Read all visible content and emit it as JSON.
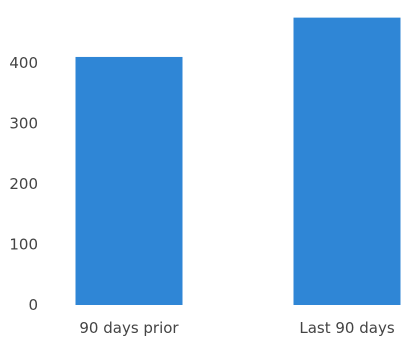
{
  "chart_data": {
    "type": "bar",
    "title": "",
    "xlabel": "",
    "ylabel": "",
    "categories": [
      "90 days prior",
      "Last 90 days"
    ],
    "values": [
      410,
      475
    ],
    "ylim": [
      0,
      500
    ],
    "yticks": [
      "0",
      "100",
      "200",
      "300",
      "400"
    ],
    "grid": false,
    "legend": "none",
    "bar_color": "#2f86d6"
  }
}
